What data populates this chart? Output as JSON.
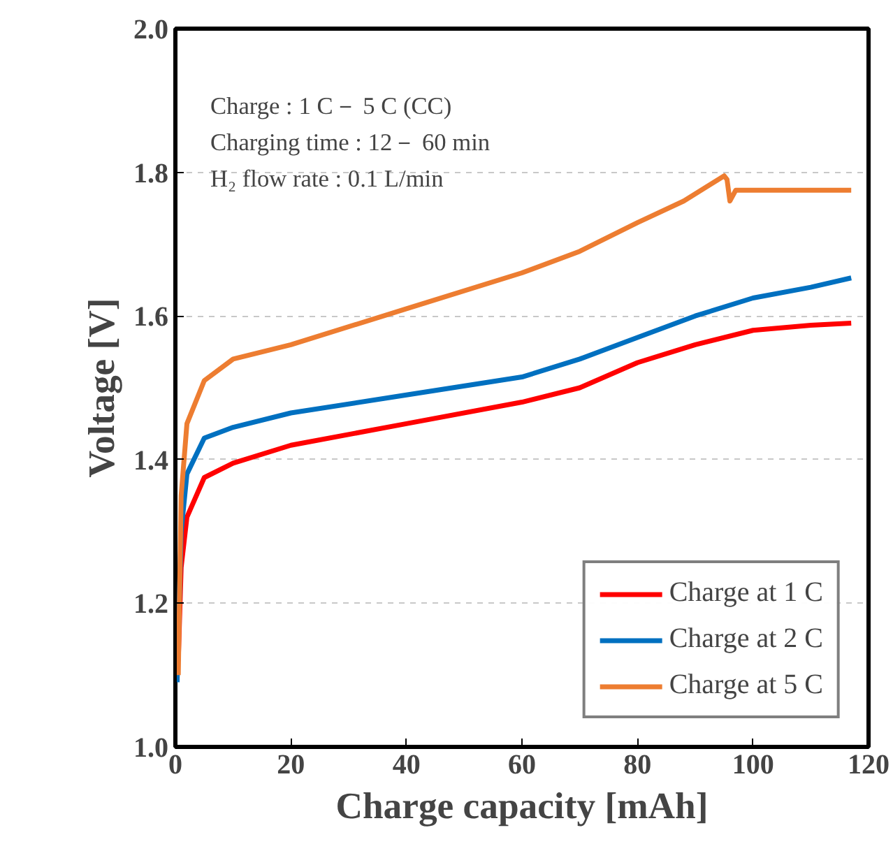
{
  "chart_data": {
    "type": "line",
    "xlabel": "Charge capacity [mAh]",
    "ylabel": "Voltage [V]",
    "annotations": [
      "Charge : 1 C－ 5 C (CC)",
      "Charging time : 12－ 60 min",
      "H₂ flow rate : 0.1 L/min"
    ],
    "xlim": [
      0,
      120
    ],
    "ylim": [
      1.0,
      2.0
    ],
    "xticks": [
      0,
      20,
      40,
      60,
      80,
      100,
      120
    ],
    "yticks": [
      {
        "value": 1.0,
        "label": "1.0"
      },
      1.2,
      1.4,
      1.6,
      1.8,
      {
        "value": 2.0,
        "label": "2.0"
      }
    ],
    "grid": "y",
    "legend": "bottom right",
    "marker": "none",
    "line_style": "solid",
    "series": [
      {
        "name": "Charge at 1 C",
        "color": "#ff0000",
        "x": [
          0.5,
          1,
          2,
          5,
          10,
          20,
          40,
          60,
          70,
          80,
          90,
          100,
          110,
          117
        ],
        "values": [
          1.12,
          1.25,
          1.32,
          1.375,
          1.395,
          1.42,
          1.45,
          1.48,
          1.5,
          1.535,
          1.56,
          1.58,
          1.587,
          1.59
        ]
      },
      {
        "name": "Charge at 2 C",
        "color": "#0070c0",
        "x": [
          0.3,
          1,
          2,
          5,
          10,
          20,
          40,
          60,
          70,
          80,
          90,
          100,
          110,
          117
        ],
        "values": [
          1.09,
          1.3,
          1.38,
          1.43,
          1.445,
          1.465,
          1.49,
          1.515,
          1.54,
          1.57,
          1.6,
          1.625,
          1.64,
          1.653
        ]
      },
      {
        "name": "Charge at 5 C",
        "color": "#ed7d31",
        "x": [
          0.5,
          1,
          2,
          5,
          10,
          20,
          40,
          60,
          70,
          80,
          88,
          95,
          95.5,
          96,
          97,
          110,
          117
        ],
        "values": [
          1.1,
          1.35,
          1.45,
          1.51,
          1.54,
          1.56,
          1.61,
          1.66,
          1.69,
          1.73,
          1.76,
          1.795,
          1.79,
          1.76,
          1.775,
          1.775,
          1.775
        ]
      }
    ]
  }
}
